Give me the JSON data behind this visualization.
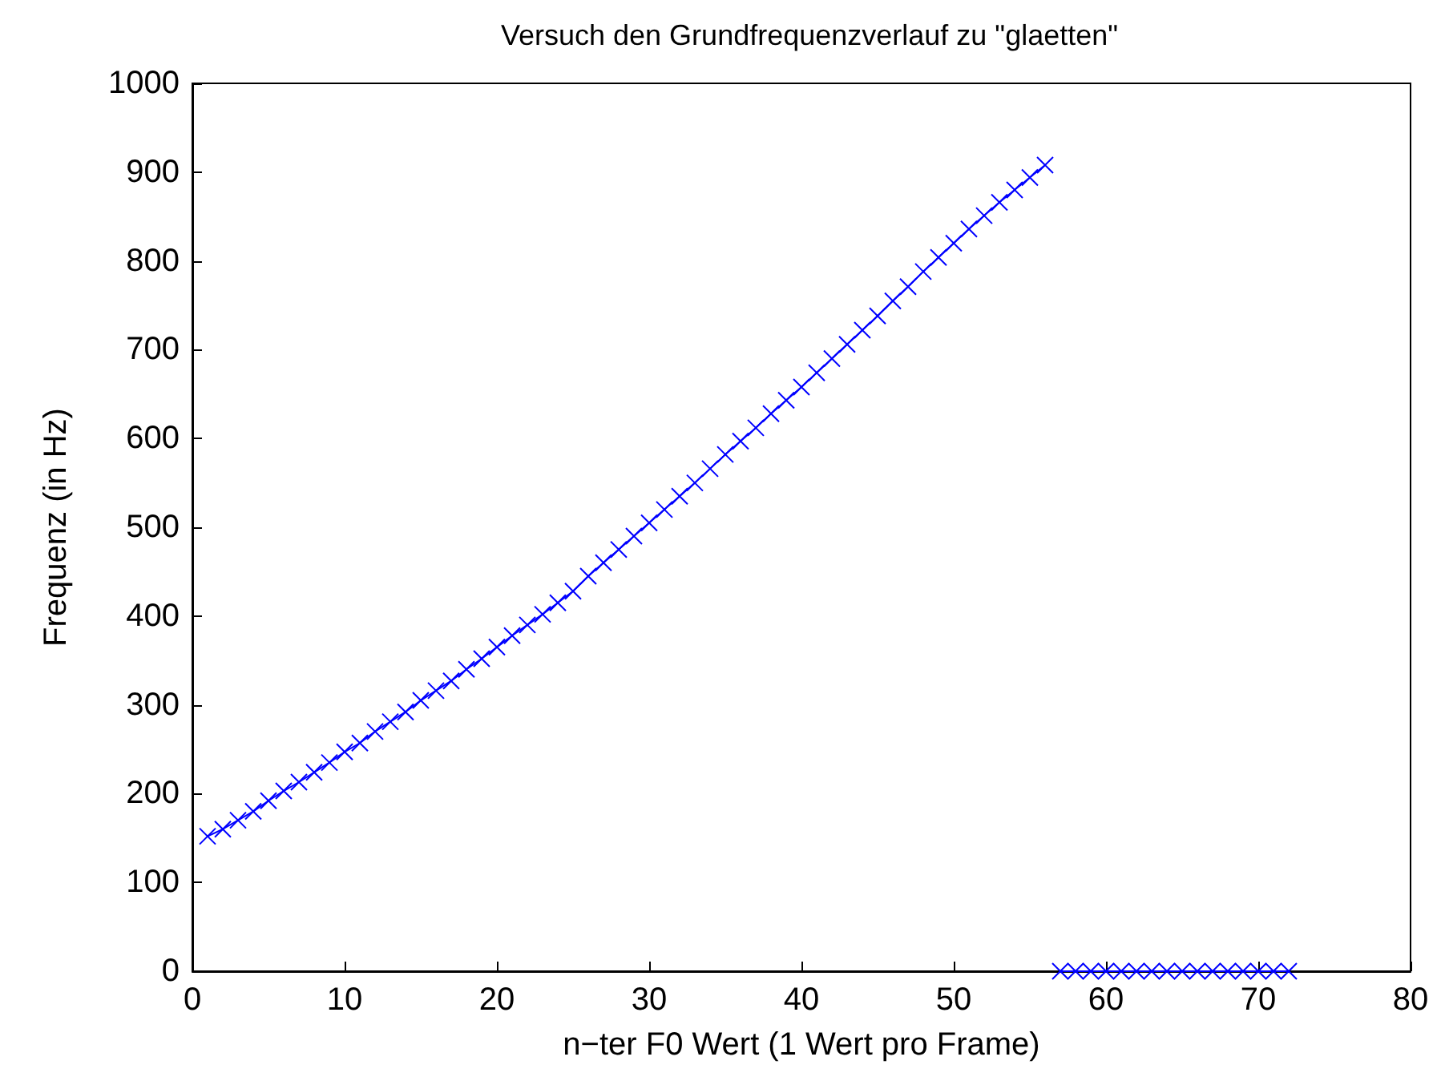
{
  "chart_data": {
    "type": "line",
    "title": "Versuch den Grundfrequenzverlauf zu \"glaetten\"",
    "xlabel": "n−ter F0 Wert (1 Wert pro Frame)",
    "ylabel": "Frequenz (in Hz)",
    "xlim": [
      0,
      80
    ],
    "ylim": [
      0,
      1000
    ],
    "xticks": [
      0,
      10,
      20,
      30,
      40,
      50,
      60,
      70,
      80
    ],
    "yticks": [
      0,
      100,
      200,
      300,
      400,
      500,
      600,
      700,
      800,
      900,
      1000
    ],
    "marker": "cross",
    "series": [
      {
        "color": "#0000ff",
        "x": [
          1,
          2,
          3,
          4,
          5,
          6,
          7,
          8,
          9,
          10,
          11,
          12,
          13,
          14,
          15,
          16,
          17,
          18,
          19,
          20,
          21,
          22,
          23,
          24,
          25,
          26,
          27,
          28,
          29,
          30,
          31,
          32,
          33,
          34,
          35,
          36,
          37,
          38,
          39,
          40,
          41,
          42,
          43,
          44,
          45,
          46,
          47,
          48,
          49,
          50,
          51,
          52,
          53,
          54,
          55,
          56
        ],
        "values": [
          152,
          160,
          170,
          180,
          192,
          203,
          213,
          224,
          235,
          247,
          257,
          270,
          281,
          292,
          305,
          316,
          327,
          340,
          352,
          365,
          378,
          390,
          402,
          415,
          428,
          445,
          460,
          475,
          490,
          505,
          520,
          535,
          550,
          566,
          582,
          597,
          612,
          628,
          643,
          658,
          674,
          690,
          706,
          722,
          738,
          755,
          771,
          788,
          804,
          820,
          836,
          851,
          866,
          880,
          894,
          908
        ]
      },
      {
        "color": "#0000ff",
        "x": [
          57,
          58,
          59,
          60,
          61,
          62,
          63,
          64,
          65,
          66,
          67,
          68,
          69,
          70,
          71,
          72
        ],
        "values": [
          0,
          0,
          0,
          0,
          0,
          0,
          0,
          0,
          0,
          0,
          0,
          0,
          0,
          0,
          0,
          0
        ]
      }
    ]
  }
}
